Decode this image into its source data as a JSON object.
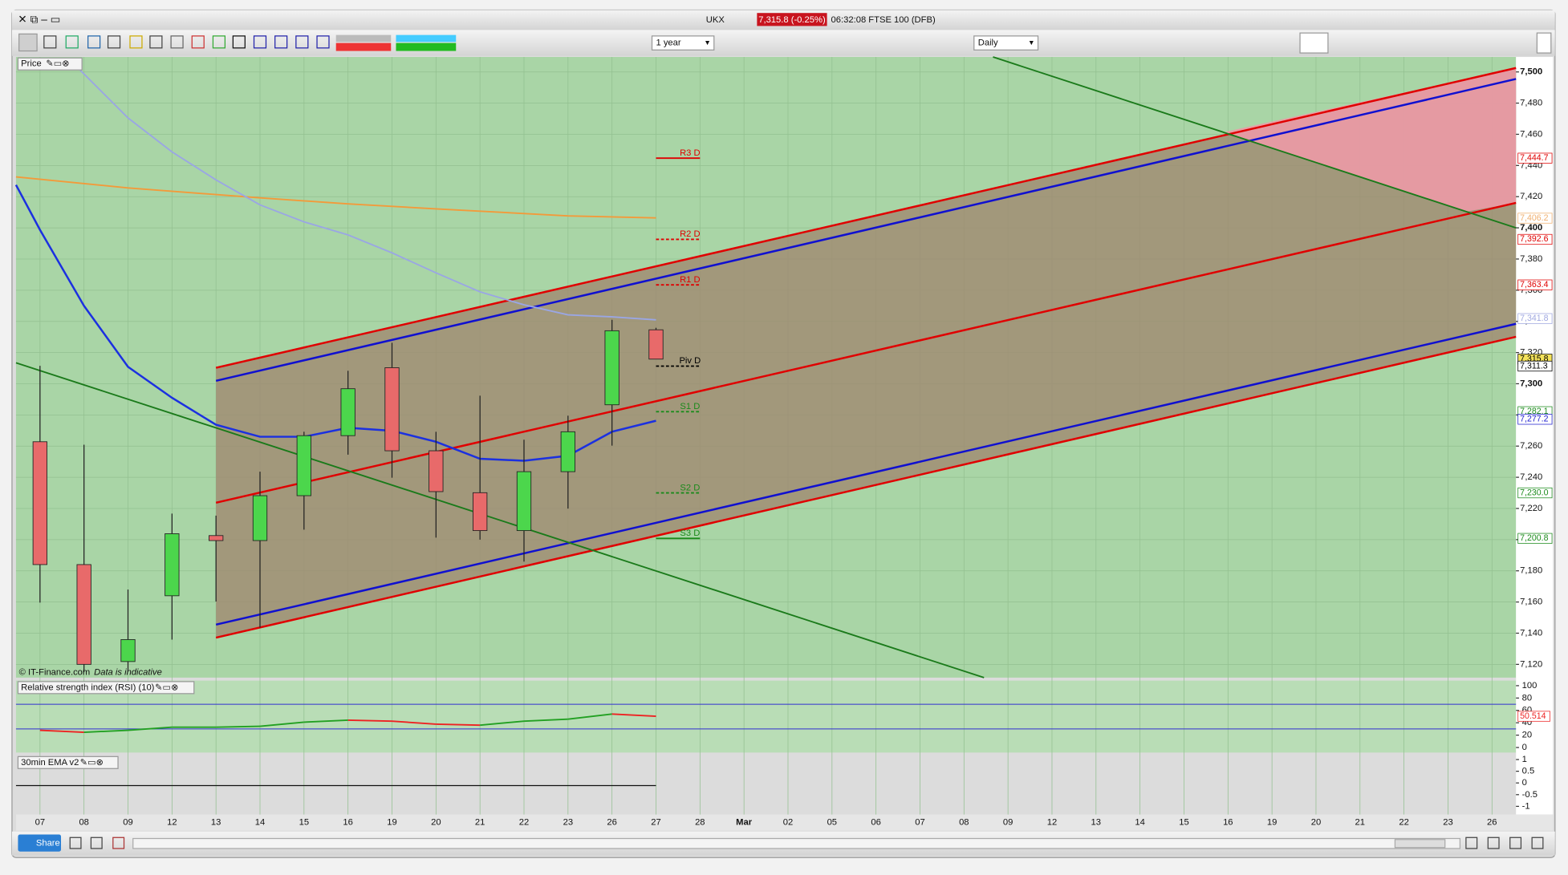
{
  "window": {
    "symbol": "UKX",
    "price": "7,315.8 (-0.25%)",
    "time_name": "06:32:08 FTSE 100 (DFB)"
  },
  "toolbar": {
    "period": "1 year",
    "interval": "Daily"
  },
  "footer": {
    "share": "Share"
  },
  "chart_data": {
    "type": "candlestick",
    "panel_label": "Price",
    "copyright": "© IT-Finance.com",
    "note": "Data is indicative",
    "categories": [
      "07",
      "08",
      "09",
      "12",
      "13",
      "14",
      "15",
      "16",
      "19",
      "20",
      "21",
      "22",
      "23",
      "26",
      "27",
      "28",
      "Mar",
      "02",
      "05",
      "06",
      "07",
      "08",
      "09",
      "12",
      "13",
      "14",
      "15",
      "16",
      "19",
      "20",
      "21",
      "22",
      "23",
      "26"
    ],
    "open": [
      7262.8,
      7184,
      7121.8,
      7164,
      7202.6,
      7199.4,
      7228.2,
      7266.7,
      7310.3,
      7257,
      7230.1,
      7205.8,
      7243.6,
      7286.5,
      7334.6,
      null,
      null,
      null,
      null,
      null,
      null,
      null,
      null,
      null,
      null,
      null,
      null,
      null,
      null,
      null,
      null,
      null,
      null,
      null
    ],
    "high": [
      7311.5,
      7260.9,
      7168,
      7216.7,
      7215.4,
      7243.6,
      7269.2,
      7308.3,
      7326.3,
      7269.2,
      7292.3,
      7264.1,
      7279.5,
      7341,
      7335.9,
      null,
      null,
      null,
      null,
      null,
      null,
      null,
      null,
      null,
      null,
      null,
      null,
      null,
      null,
      null,
      null,
      null,
      null,
      null
    ],
    "low": [
      7159.6,
      7115,
      7116,
      7135.9,
      7160.3,
      7143.6,
      7206.4,
      7254.5,
      7239.7,
      7201.3,
      7200,
      7185.9,
      7219.9,
      7260.3,
      7315.8,
      null,
      null,
      null,
      null,
      null,
      null,
      null,
      null,
      null,
      null,
      null,
      null,
      null,
      null,
      null,
      null,
      null,
      null,
      null
    ],
    "close": [
      7184,
      7120,
      7135.9,
      7203.8,
      7199.4,
      7228.2,
      7266.7,
      7296.8,
      7257,
      7230.8,
      7205.8,
      7243.6,
      7269.2,
      7334,
      7315.8,
      null,
      null,
      null,
      null,
      null,
      null,
      null,
      null,
      null,
      null,
      null,
      null,
      null,
      null,
      null,
      null,
      null,
      null,
      null
    ],
    "up_color": "#4cd64c",
    "down_color": "#e86a6a",
    "ylim": [
      7111.5,
      7509.6
    ],
    "yticks": [
      {
        "value": 7120,
        "label": "7,120"
      },
      {
        "value": 7140,
        "label": "7,140"
      },
      {
        "value": 7160,
        "label": "7,160"
      },
      {
        "value": 7180,
        "label": "7,180"
      },
      {
        "value": 7200,
        "label": "7,200"
      },
      {
        "value": 7220,
        "label": "7,220"
      },
      {
        "value": 7240,
        "label": "7,240"
      },
      {
        "value": 7260,
        "label": "7,260"
      },
      {
        "value": 7280,
        "label": "7,280"
      },
      {
        "value": 7300,
        "label": "7,300"
      },
      {
        "value": 7320,
        "label": "7,320"
      },
      {
        "value": 7340,
        "label": "7,340"
      },
      {
        "value": 7360,
        "label": "7,360"
      },
      {
        "value": 7380,
        "label": "7,380"
      },
      {
        "value": 7400,
        "label": "7,400"
      },
      {
        "value": 7420,
        "label": "7,420"
      },
      {
        "value": 7440,
        "label": "7,440"
      },
      {
        "value": 7460,
        "label": "7,460"
      },
      {
        "value": 7480,
        "label": "7,480"
      },
      {
        "value": 7500,
        "label": "7,500"
      }
    ],
    "grid": true,
    "pivots": [
      {
        "name": "R3 D",
        "value": 7444.7,
        "color": "#e00000",
        "dashed": false
      },
      {
        "name": "R2 D",
        "value": 7392.6,
        "color": "#e00000",
        "dashed": true
      },
      {
        "name": "R1 D",
        "value": 7363.4,
        "color": "#e00000",
        "dashed": true
      },
      {
        "name": "Piv D",
        "value": 7311.3,
        "color": "#000000",
        "dashed": true
      },
      {
        "name": "S1 D",
        "value": 7282.1,
        "color": "#1a8a1a",
        "dashed": true
      },
      {
        "name": "S2 D",
        "value": 7230,
        "color": "#1a8a1a",
        "dashed": true
      },
      {
        "name": "S3 D",
        "value": 7200.8,
        "color": "#1a8a1a",
        "dashed": false
      }
    ],
    "price_labels": [
      {
        "value": 7444.7,
        "label": "7,444.7",
        "color": "#e00000"
      },
      {
        "value": 7406.2,
        "label": "7,406.2",
        "color": "#f0b070"
      },
      {
        "value": 7392.6,
        "label": "7,392.6",
        "color": "#e00000"
      },
      {
        "value": 7363.4,
        "label": "7,363.4",
        "color": "#e00000"
      },
      {
        "value": 7341.8,
        "label": "7,341.8",
        "color": "#a0a8e0"
      },
      {
        "value": 7315.8,
        "label": "7,315.8",
        "color": "#000000",
        "background": "#f4e25a"
      },
      {
        "value": 7311.3,
        "label": "7,311.3",
        "color": "#000000"
      },
      {
        "value": 7282.1,
        "label": "7,282.1",
        "color": "#1a8a1a"
      },
      {
        "value": 7277.2,
        "label": "7,277.2",
        "color": "#2020d0"
      },
      {
        "value": 7230,
        "label": "7,230.0",
        "color": "#1a8a1a"
      },
      {
        "value": 7200.8,
        "label": "7,200.8",
        "color": "#1a8a1a"
      }
    ]
  },
  "rsi": {
    "type": "line",
    "panel_label": "Relative strength index (RSI) (10)",
    "values": [
      27.9,
      24.6,
      27.9,
      32.8,
      32.8,
      34.4,
      41,
      44.3,
      42.6,
      37.7,
      36.1,
      42.6,
      45.9,
      54.1,
      50.514
    ],
    "ylim": [
      -8.2,
      108.2
    ],
    "yticks": [
      100,
      80,
      60,
      40,
      20,
      0
    ],
    "levels": [
      70,
      30
    ],
    "last_label": "50.514",
    "up_color": "#22a022",
    "down_color": "#ee2222"
  },
  "ema": {
    "panel_label": "30min EMA v2",
    "ylim": [
      -1.35,
      1.17
    ],
    "yticks": [
      1,
      0.5,
      0,
      -0.5,
      -1
    ]
  }
}
